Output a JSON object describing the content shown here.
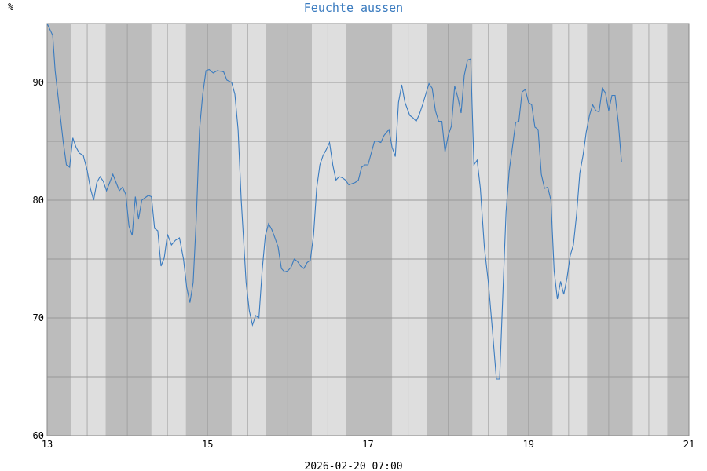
{
  "chart_data": {
    "type": "line",
    "title": "Feuchte aussen",
    "ylabel": "%",
    "timestamp": "2026-02-20 07:00",
    "xlim": [
      13,
      21
    ],
    "ylim": [
      60,
      95
    ],
    "x_ticks": [
      13,
      15,
      17,
      19,
      21
    ],
    "y_ticks": [
      60,
      70,
      80,
      90
    ],
    "grid": true,
    "colors": {
      "line": "#3a7bbf",
      "band_dark": "#bcbcbc",
      "band_light": "#dedede",
      "grid": "#999999",
      "title": "#3a7bbf"
    },
    "night_bands": [
      [
        13.0,
        13.3
      ],
      [
        13.73,
        14.3
      ],
      [
        14.73,
        15.3
      ],
      [
        15.73,
        16.3
      ],
      [
        16.73,
        17.3
      ],
      [
        17.73,
        18.3
      ],
      [
        18.73,
        19.3
      ],
      [
        19.73,
        20.3
      ],
      [
        20.73,
        21.0
      ]
    ],
    "series": [
      {
        "values": [
          [
            13.0,
            95.0
          ],
          [
            13.07,
            94.0
          ],
          [
            13.1,
            91.0
          ],
          [
            13.15,
            88.0
          ],
          [
            13.2,
            85.0
          ],
          [
            13.24,
            83.0
          ],
          [
            13.28,
            82.8
          ],
          [
            13.32,
            85.3
          ],
          [
            13.36,
            84.5
          ],
          [
            13.4,
            84.0
          ],
          [
            13.45,
            83.8
          ],
          [
            13.5,
            82.5
          ],
          [
            13.54,
            81.0
          ],
          [
            13.58,
            80.0
          ],
          [
            13.62,
            81.5
          ],
          [
            13.66,
            82.0
          ],
          [
            13.7,
            81.6
          ],
          [
            13.74,
            80.8
          ],
          [
            13.78,
            81.5
          ],
          [
            13.82,
            82.2
          ],
          [
            13.86,
            81.5
          ],
          [
            13.9,
            80.8
          ],
          [
            13.94,
            81.1
          ],
          [
            13.98,
            80.5
          ],
          [
            14.02,
            77.8
          ],
          [
            14.06,
            77.0
          ],
          [
            14.1,
            80.3
          ],
          [
            14.14,
            78.4
          ],
          [
            14.18,
            80.0
          ],
          [
            14.22,
            80.2
          ],
          [
            14.26,
            80.4
          ],
          [
            14.3,
            80.3
          ],
          [
            14.34,
            77.6
          ],
          [
            14.38,
            77.4
          ],
          [
            14.42,
            74.4
          ],
          [
            14.46,
            75.1
          ],
          [
            14.5,
            77.1
          ],
          [
            14.55,
            76.2
          ],
          [
            14.6,
            76.6
          ],
          [
            14.65,
            76.8
          ],
          [
            14.7,
            75.0
          ],
          [
            14.74,
            72.6
          ],
          [
            14.78,
            71.3
          ],
          [
            14.82,
            73.0
          ],
          [
            14.86,
            78.6
          ],
          [
            14.9,
            86.0
          ],
          [
            14.94,
            89.0
          ],
          [
            14.98,
            91.0
          ],
          [
            15.02,
            91.1
          ],
          [
            15.07,
            90.8
          ],
          [
            15.12,
            91.0
          ],
          [
            15.2,
            90.9
          ],
          [
            15.24,
            90.2
          ],
          [
            15.3,
            90.0
          ],
          [
            15.34,
            89.0
          ],
          [
            15.38,
            86.0
          ],
          [
            15.42,
            80.0
          ],
          [
            15.48,
            73.0
          ],
          [
            15.52,
            70.6
          ],
          [
            15.56,
            69.4
          ],
          [
            15.6,
            70.2
          ],
          [
            15.64,
            70.0
          ],
          [
            15.68,
            74.0
          ],
          [
            15.72,
            77.0
          ],
          [
            15.76,
            78.0
          ],
          [
            15.8,
            77.5
          ],
          [
            15.84,
            76.8
          ],
          [
            15.88,
            76.0
          ],
          [
            15.92,
            74.2
          ],
          [
            15.96,
            73.9
          ],
          [
            16.0,
            74.0
          ],
          [
            16.04,
            74.3
          ],
          [
            16.08,
            75.0
          ],
          [
            16.12,
            74.8
          ],
          [
            16.16,
            74.4
          ],
          [
            16.2,
            74.2
          ],
          [
            16.24,
            74.7
          ],
          [
            16.28,
            74.9
          ],
          [
            16.32,
            77.0
          ],
          [
            16.36,
            81.0
          ],
          [
            16.4,
            83.0
          ],
          [
            16.44,
            83.8
          ],
          [
            16.48,
            84.3
          ],
          [
            16.52,
            84.9
          ],
          [
            16.56,
            83.0
          ],
          [
            16.6,
            81.7
          ],
          [
            16.64,
            82.0
          ],
          [
            16.68,
            81.9
          ],
          [
            16.72,
            81.7
          ],
          [
            16.76,
            81.3
          ],
          [
            16.8,
            81.4
          ],
          [
            16.84,
            81.5
          ],
          [
            16.88,
            81.7
          ],
          [
            16.92,
            82.8
          ],
          [
            16.96,
            83.0
          ],
          [
            17.0,
            83.0
          ],
          [
            17.04,
            84.0
          ],
          [
            17.08,
            85.0
          ],
          [
            17.12,
            85.0
          ],
          [
            17.16,
            84.9
          ],
          [
            17.2,
            85.5
          ],
          [
            17.26,
            86.0
          ],
          [
            17.3,
            84.5
          ],
          [
            17.34,
            83.7
          ],
          [
            17.38,
            88.3
          ],
          [
            17.42,
            89.8
          ],
          [
            17.46,
            88.3
          ],
          [
            17.52,
            87.2
          ],
          [
            17.56,
            87.0
          ],
          [
            17.6,
            86.7
          ],
          [
            17.64,
            87.3
          ],
          [
            17.68,
            88.1
          ],
          [
            17.72,
            89.0
          ],
          [
            17.76,
            89.9
          ],
          [
            17.8,
            89.5
          ],
          [
            17.84,
            87.6
          ],
          [
            17.88,
            86.7
          ],
          [
            17.92,
            86.7
          ],
          [
            17.96,
            84.1
          ],
          [
            18.0,
            85.5
          ],
          [
            18.04,
            86.3
          ],
          [
            18.08,
            89.7
          ],
          [
            18.12,
            88.7
          ],
          [
            18.16,
            87.4
          ],
          [
            18.2,
            90.6
          ],
          [
            18.24,
            91.9
          ],
          [
            18.28,
            92.0
          ],
          [
            18.32,
            83.0
          ],
          [
            18.36,
            83.4
          ],
          [
            18.4,
            81.0
          ],
          [
            18.45,
            76.0
          ],
          [
            18.5,
            73.0
          ],
          [
            18.55,
            69.0
          ],
          [
            18.6,
            64.8
          ],
          [
            18.64,
            64.8
          ],
          [
            18.68,
            72.0
          ],
          [
            18.72,
            79.0
          ],
          [
            18.76,
            82.5
          ],
          [
            18.8,
            84.5
          ],
          [
            18.84,
            86.6
          ],
          [
            18.88,
            86.7
          ],
          [
            18.92,
            89.2
          ],
          [
            18.96,
            89.4
          ],
          [
            19.0,
            88.3
          ],
          [
            19.04,
            88.1
          ],
          [
            19.08,
            86.2
          ],
          [
            19.12,
            86.0
          ],
          [
            19.16,
            82.2
          ],
          [
            19.2,
            81.0
          ],
          [
            19.24,
            81.1
          ],
          [
            19.28,
            80.0
          ],
          [
            19.32,
            74.0
          ],
          [
            19.36,
            71.6
          ],
          [
            19.4,
            73.1
          ],
          [
            19.44,
            72.0
          ],
          [
            19.48,
            73.4
          ],
          [
            19.52,
            75.3
          ],
          [
            19.56,
            76.2
          ],
          [
            19.6,
            78.8
          ],
          [
            19.64,
            82.3
          ],
          [
            19.68,
            83.8
          ],
          [
            19.72,
            85.8
          ],
          [
            19.76,
            87.2
          ],
          [
            19.8,
            88.1
          ],
          [
            19.84,
            87.6
          ],
          [
            19.88,
            87.5
          ],
          [
            19.92,
            89.5
          ],
          [
            19.96,
            89.1
          ],
          [
            20.0,
            87.6
          ],
          [
            20.04,
            88.9
          ],
          [
            20.08,
            88.9
          ],
          [
            20.12,
            86.6
          ],
          [
            20.16,
            83.2
          ]
        ]
      }
    ]
  }
}
